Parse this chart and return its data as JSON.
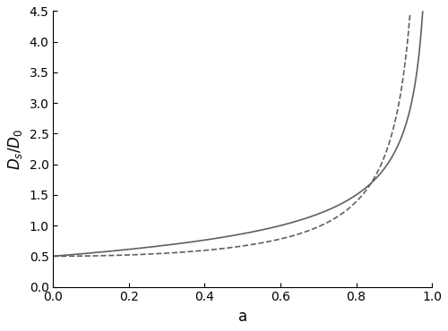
{
  "xlim": [
    0.0,
    1.0
  ],
  "ylim": [
    0.0,
    4.5
  ],
  "xticks": [
    0.0,
    0.2,
    0.4,
    0.6,
    0.8,
    1.0
  ],
  "yticks": [
    0.0,
    0.5,
    1.0,
    1.5,
    2.0,
    2.5,
    3.0,
    3.5,
    4.0,
    4.5
  ],
  "xlabel": "a",
  "ylabel": "$D_s/D_0$",
  "line_color": "#606060",
  "background_color": "#ffffff",
  "a_max_model1": 0.9985,
  "a_max_model2": 0.9915,
  "num_points": 2000,
  "linewidth": 1.2,
  "tick_fontsize": 10,
  "label_fontsize": 12
}
